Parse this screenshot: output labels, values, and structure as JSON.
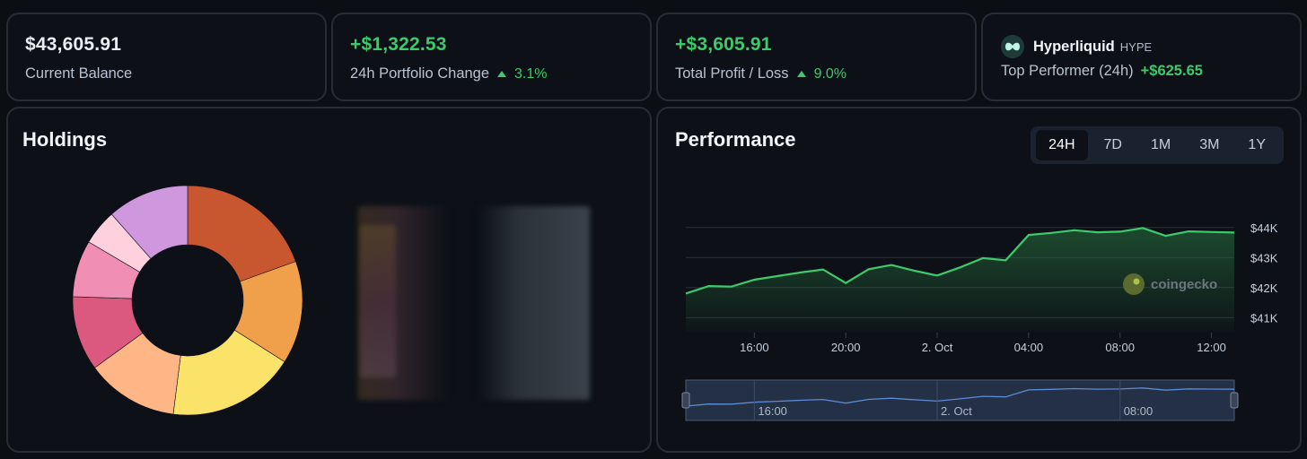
{
  "stats": {
    "balance": {
      "value": "$43,605.91",
      "label": "Current Balance"
    },
    "change24h": {
      "value": "+$1,322.53",
      "label": "24h Portfolio Change",
      "pct": "3.1%"
    },
    "profit": {
      "value": "+$3,605.91",
      "label": "Total Profit / Loss",
      "pct": "9.0%"
    },
    "top": {
      "name": "Hyperliquid",
      "ticker": "HYPE",
      "label": "Top Performer (24h)",
      "amount": "+$625.65",
      "icon": "hyperliquid-logo-icon"
    }
  },
  "holdings": {
    "title": "Holdings",
    "colors": [
      "#c8572f",
      "#f0a04b",
      "#fbe36a",
      "#ffb686",
      "#db587f",
      "#f08eb4",
      "#ffd0de",
      "#cf97dd"
    ],
    "values": [
      19.5,
      14.5,
      18,
      13,
      10.5,
      8,
      5,
      11.5
    ]
  },
  "performance": {
    "title": "Performance",
    "tabs": [
      "24H",
      "7D",
      "1M",
      "3M",
      "1Y"
    ],
    "active_tab": "24H",
    "watermark": "coingecko",
    "accent": "#3ec96a"
  },
  "chart_data": {
    "type": "area",
    "title": "Performance",
    "x": [
      "13:00",
      "14:00",
      "15:00",
      "16:00",
      "17:00",
      "18:00",
      "19:00",
      "20:00",
      "21:00",
      "22:00",
      "23:00",
      "00:00",
      "01:00",
      "02:00",
      "03:00",
      "04:00",
      "05:00",
      "06:00",
      "07:00",
      "08:00",
      "09:00",
      "10:00",
      "11:00",
      "12:00",
      "13:00"
    ],
    "values": [
      41800,
      42050,
      42030,
      42260,
      42380,
      42500,
      42600,
      42150,
      42610,
      42750,
      42560,
      42400,
      42670,
      42980,
      42910,
      43750,
      43820,
      43910,
      43840,
      43860,
      43980,
      43720,
      43870,
      43850,
      43830
    ],
    "x_ticks": [
      "16:00",
      "20:00",
      "2. Oct",
      "04:00",
      "08:00",
      "12:00"
    ],
    "y_ticks": [
      "$41K",
      "$42K",
      "$43K",
      "$44K"
    ],
    "ylim": [
      40500,
      44500
    ],
    "navigator_ticks": [
      "16:00",
      "2. Oct",
      "08:00"
    ]
  }
}
